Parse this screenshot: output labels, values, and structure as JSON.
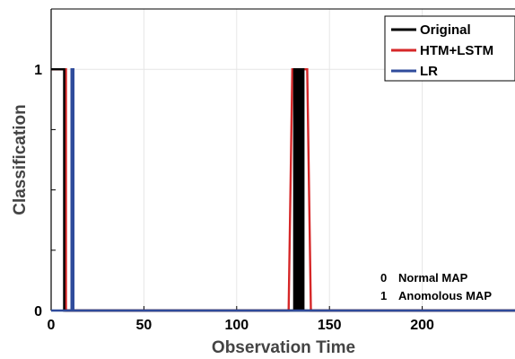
{
  "chart_data": {
    "type": "line",
    "title": "",
    "xlabel": "Observation Time",
    "ylabel": "Classification",
    "xlim": [
      0,
      250
    ],
    "ylim": [
      0,
      1.25
    ],
    "xticks": [
      0,
      50,
      100,
      150,
      200
    ],
    "yticks": [
      0,
      1
    ],
    "grid": true,
    "legend_position": "top-right",
    "series": [
      {
        "name": "Original",
        "color": "#000000",
        "x": [
          0,
          7,
          7,
          8,
          8,
          131,
          131,
          132,
          132,
          133,
          133,
          134,
          134,
          135,
          135,
          136,
          136,
          137,
          137,
          250
        ],
        "y": [
          1,
          1,
          0,
          0,
          0,
          0,
          1,
          1,
          0,
          0,
          1,
          1,
          0,
          0,
          1,
          1,
          0,
          0,
          0,
          0
        ]
      },
      {
        "name": "HTM+LSTM",
        "color": "#d62728",
        "x": [
          0,
          8,
          8,
          128,
          130,
          138,
          140,
          250
        ],
        "y": [
          1,
          1,
          0,
          0,
          1,
          1,
          0,
          0
        ]
      },
      {
        "name": "LR",
        "color": "#2f4b9b",
        "x": [
          0,
          11,
          11,
          12,
          12,
          250
        ],
        "y": [
          0,
          0,
          1,
          1,
          0,
          0
        ]
      }
    ],
    "annotations": [
      {
        "code": "0",
        "text": "Normal MAP"
      },
      {
        "code": "1",
        "text": "Anomolous MAP"
      }
    ]
  }
}
